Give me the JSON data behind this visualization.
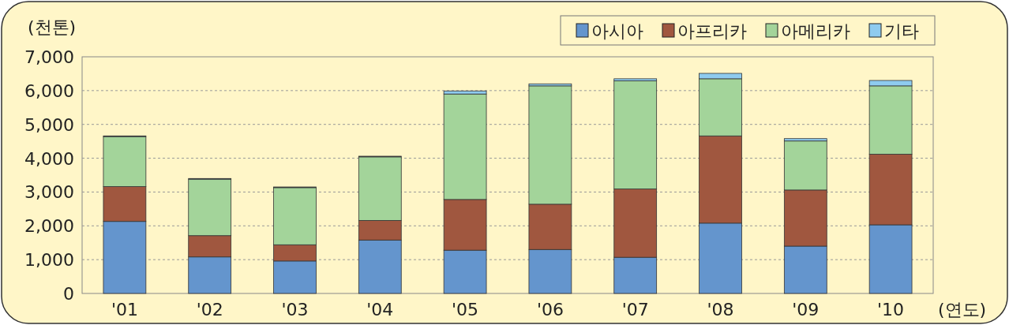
{
  "chart_data": {
    "type": "bar",
    "stacked": true,
    "ylabel": "(천톤)",
    "xlabel": "(연도)",
    "categories": [
      "'01",
      "'02",
      "'03",
      "'04",
      "'05",
      "'06",
      "'07",
      "'08",
      "'09",
      "'10"
    ],
    "series": [
      {
        "name": "아시아",
        "color": "#6495cd",
        "values": [
          2130,
          1080,
          960,
          1580,
          1280,
          1300,
          1070,
          2080,
          1400,
          2030
        ]
      },
      {
        "name": "아프리카",
        "color": "#a0573f",
        "values": [
          1030,
          630,
          480,
          580,
          1500,
          1340,
          2020,
          2580,
          1660,
          2090
        ]
      },
      {
        "name": "아메리카",
        "color": "#a3d49a",
        "values": [
          1480,
          1670,
          1690,
          1880,
          3120,
          3500,
          3200,
          1690,
          1450,
          2020
        ]
      },
      {
        "name": "기타",
        "color": "#8ecbef",
        "values": [
          20,
          20,
          20,
          20,
          90,
          60,
          60,
          160,
          70,
          160
        ]
      }
    ],
    "ylim": [
      0,
      7000
    ],
    "yticks": [
      {
        "value": 0,
        "label": "0"
      },
      {
        "value": 1000,
        "label": "1,000"
      },
      {
        "value": 2000,
        "label": "2,000"
      },
      {
        "value": 3000,
        "label": "3,000"
      },
      {
        "value": 4000,
        "label": "4,000"
      },
      {
        "value": 5000,
        "label": "5,000"
      },
      {
        "value": 6000,
        "label": "6,000"
      },
      {
        "value": 7000,
        "label": "7,000"
      }
    ],
    "grid": "y",
    "legend": "top right"
  }
}
